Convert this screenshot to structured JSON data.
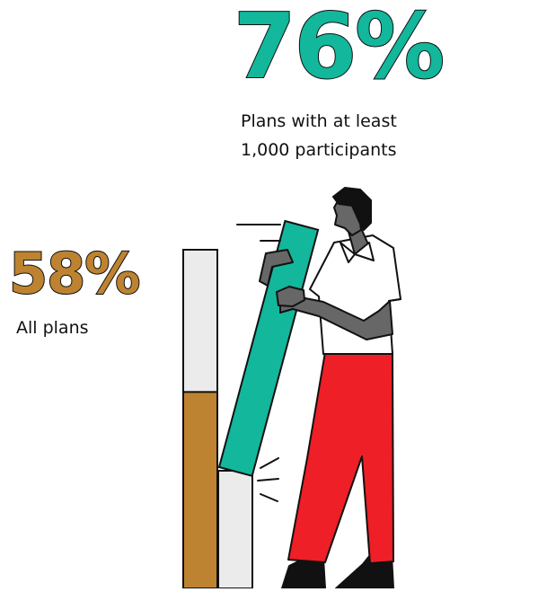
{
  "colors": {
    "highlight": "#12b79c",
    "base": "#bd8330",
    "empty": "#ebebeb",
    "outline": "#111111",
    "skin": "#676767",
    "shirt": "#ffffff",
    "pants": "#ee1f26",
    "shoes": "#111111"
  },
  "chart_data": {
    "type": "bar",
    "orientation": "vertical",
    "ylim": [
      0,
      100
    ],
    "series": [
      {
        "value": 58,
        "value_label": "58%",
        "caption": [
          "All plans"
        ]
      },
      {
        "value": 76,
        "value_label": "76%",
        "caption": [
          "Plans with at least",
          "1,000 participants"
        ]
      }
    ]
  }
}
